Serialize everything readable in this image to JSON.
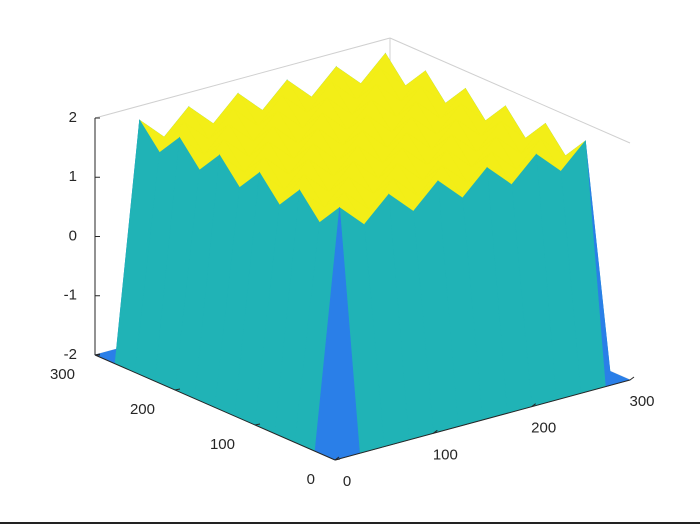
{
  "chart_data": {
    "type": "surface",
    "x": [
      0,
      25,
      50,
      75,
      100,
      125,
      150,
      175,
      200,
      225,
      250,
      275,
      300
    ],
    "y": [
      0,
      25,
      50,
      75,
      100,
      125,
      150,
      175,
      200,
      225,
      250,
      275,
      300
    ],
    "z": [
      [
        -2,
        -2,
        -2,
        -2,
        -2,
        -2,
        -2,
        -2,
        -2,
        -2,
        -2,
        -2,
        -2
      ],
      [
        -2,
        2,
        1.6,
        2,
        1.6,
        2,
        1.6,
        2,
        1.6,
        2,
        1.6,
        2,
        -2
      ],
      [
        -2,
        1.6,
        2,
        1.6,
        2,
        1.6,
        2,
        1.6,
        2,
        1.6,
        2,
        1.6,
        -2
      ],
      [
        -2,
        2,
        1.6,
        2,
        1.6,
        2,
        1.6,
        2,
        1.6,
        2,
        1.6,
        2,
        -2
      ],
      [
        -2,
        1.6,
        2,
        1.6,
        2,
        1.6,
        2,
        1.6,
        2,
        1.6,
        2,
        1.6,
        -2
      ],
      [
        -2,
        2,
        1.6,
        2,
        1.6,
        2,
        1.6,
        2,
        1.6,
        2,
        1.6,
        2,
        -2
      ],
      [
        -2,
        1.6,
        2,
        1.6,
        2,
        1.6,
        2,
        1.6,
        2,
        1.6,
        2,
        1.6,
        -2
      ],
      [
        -2,
        2,
        1.6,
        2,
        1.6,
        2,
        1.6,
        2,
        1.6,
        2,
        1.6,
        2,
        -2
      ],
      [
        -2,
        1.6,
        2,
        1.6,
        2,
        1.6,
        2,
        1.6,
        2,
        1.6,
        2,
        1.6,
        -2
      ],
      [
        -2,
        2,
        1.6,
        2,
        1.6,
        2,
        1.6,
        2,
        1.6,
        2,
        1.6,
        2,
        -2
      ],
      [
        -2,
        1.6,
        2,
        1.6,
        2,
        1.6,
        2,
        1.6,
        2,
        1.6,
        2,
        1.6,
        -2
      ],
      [
        -2,
        2,
        1.6,
        2,
        1.6,
        2,
        1.6,
        2,
        1.6,
        2,
        1.6,
        2,
        -2
      ],
      [
        -2,
        -2,
        -2,
        -2,
        -2,
        -2,
        -2,
        -2,
        -2,
        -2,
        -2,
        -2,
        -2
      ]
    ],
    "xlim": [
      0,
      300
    ],
    "ylim": [
      0,
      300
    ],
    "zlim": [
      -2,
      2
    ],
    "xticks": [
      0,
      100,
      200,
      300
    ],
    "yticks": [
      0,
      100,
      200,
      300
    ],
    "zticks": [
      -2,
      -1,
      0,
      1,
      2
    ],
    "colormap": [
      "#3e26a8",
      "#2a7fe8",
      "#1fb9b0",
      "#d9b83a",
      "#f9fb0e"
    ]
  }
}
